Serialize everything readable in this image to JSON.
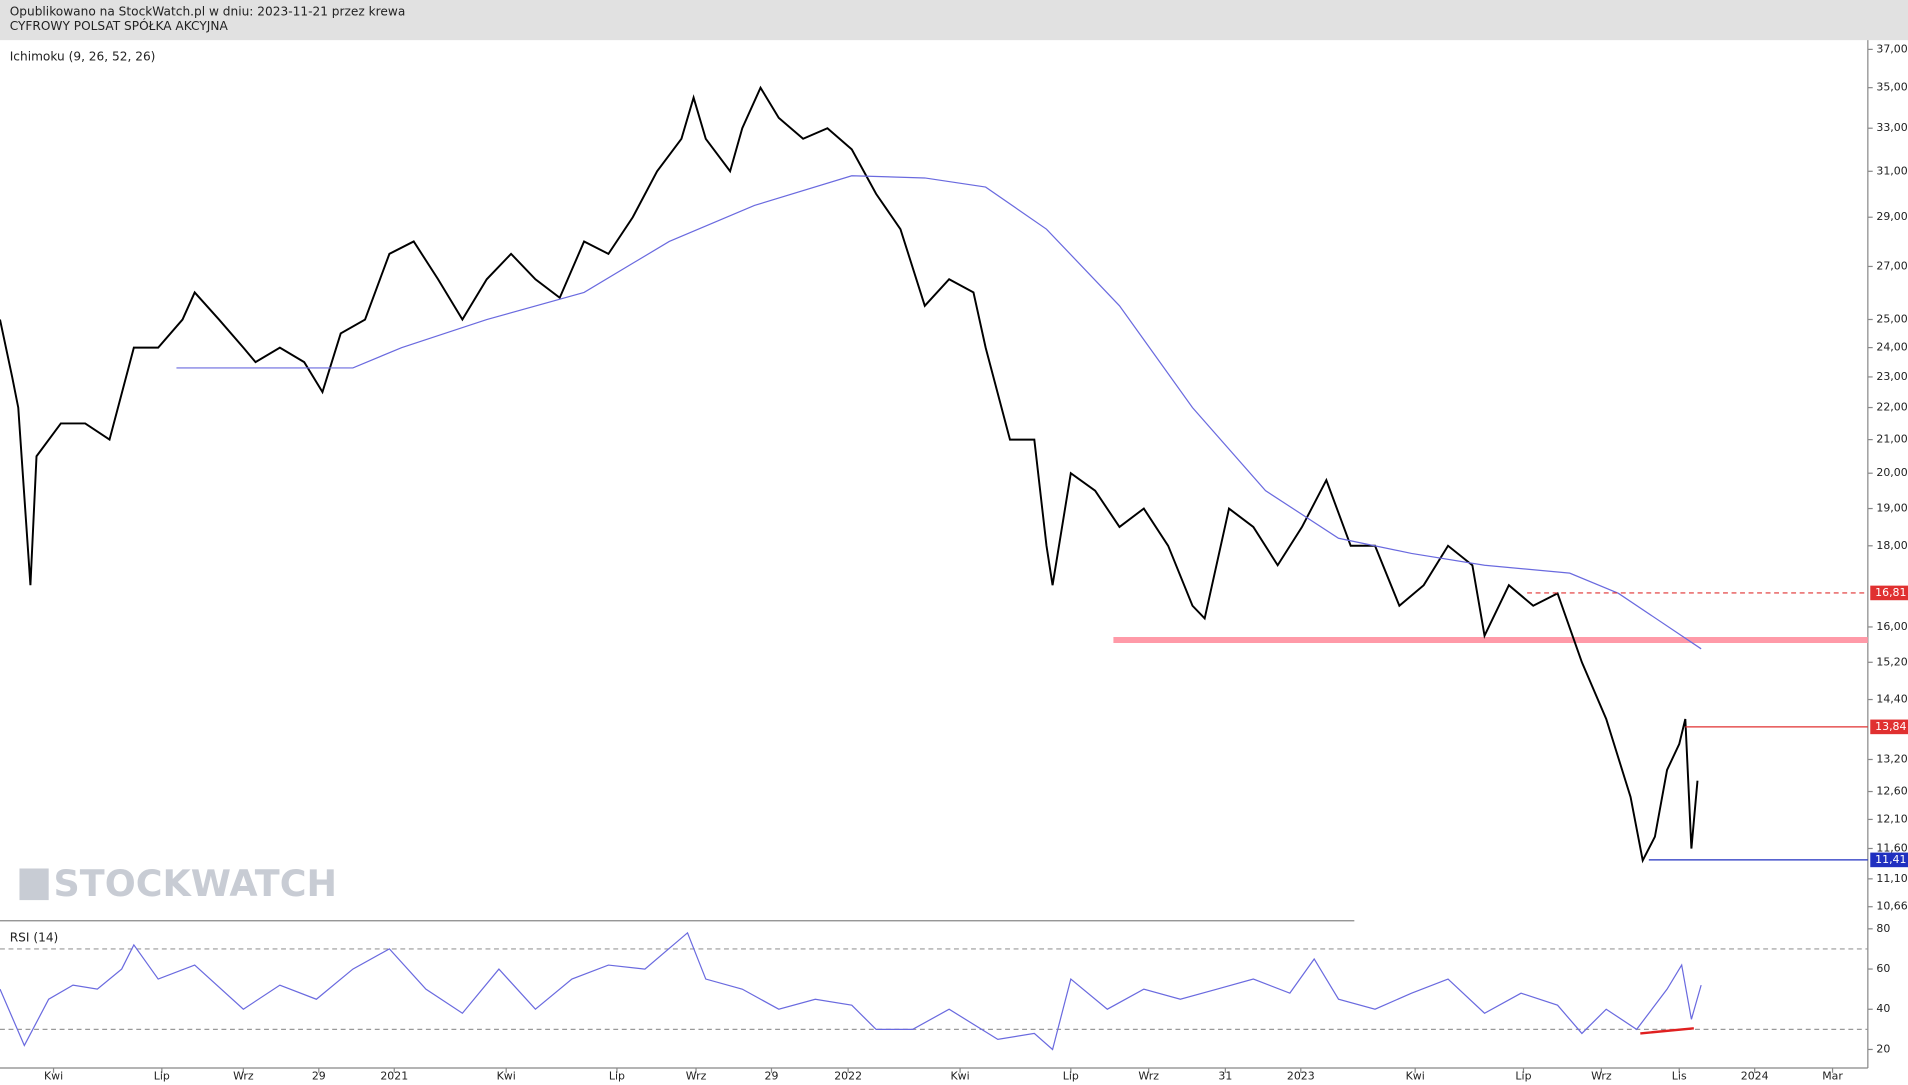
{
  "header": {
    "published": "Opublikowano na StockWatch.pl w dniu: 2023-11-21 przez krewa",
    "instrument": "CYFROWY POLSAT SPÓŁKA AKCYJNA"
  },
  "watermark": "STOCKWATCH",
  "chart_data": [
    {
      "type": "line",
      "title": "Ichimoku (9, 26, 52, 26)",
      "log_scale": true,
      "xlim": [
        0,
        1535
      ],
      "ylim": [
        10.5,
        37.5
      ],
      "xticks": [
        {
          "value": 44,
          "label": "Kwi"
        },
        {
          "value": 133,
          "label": "Lip"
        },
        {
          "value": 200,
          "label": "Wrz"
        },
        {
          "value": 262,
          "label": "29"
        },
        {
          "value": 324,
          "label": "2021"
        },
        {
          "value": 416,
          "label": "Kwi"
        },
        {
          "value": 507,
          "label": "Lip"
        },
        {
          "value": 572,
          "label": "Wrz"
        },
        {
          "value": 634,
          "label": "29"
        },
        {
          "value": 697,
          "label": "2022"
        },
        {
          "value": 789,
          "label": "Kwi"
        },
        {
          "value": 880,
          "label": "Lip"
        },
        {
          "value": 944,
          "label": "Wrz"
        },
        {
          "value": 1007,
          "label": "31"
        },
        {
          "value": 1069,
          "label": "2023"
        },
        {
          "value": 1163,
          "label": "Kwi"
        },
        {
          "value": 1252,
          "label": "Lip"
        },
        {
          "value": 1316,
          "label": "Wrz"
        },
        {
          "value": 1380,
          "label": "Lis"
        },
        {
          "value": 1442,
          "label": "2024"
        },
        {
          "value": 1506,
          "label": "Mar"
        }
      ],
      "yticks": [
        {
          "value": 37,
          "label": "37,00"
        },
        {
          "value": 35,
          "label": "35,00"
        },
        {
          "value": 33,
          "label": "33,00"
        },
        {
          "value": 31,
          "label": "31,00"
        },
        {
          "value": 29,
          "label": "29,00"
        },
        {
          "value": 27,
          "label": "27,00"
        },
        {
          "value": 25,
          "label": "25,00"
        },
        {
          "value": 24,
          "label": "24,00"
        },
        {
          "value": 23,
          "label": "23,00"
        },
        {
          "value": 22,
          "label": "22,00"
        },
        {
          "value": 21,
          "label": "21,00"
        },
        {
          "value": 20,
          "label": "20,00"
        },
        {
          "value": 19,
          "label": "19,00"
        },
        {
          "value": 18,
          "label": "18,00"
        },
        {
          "value": 16,
          "label": "16,00"
        },
        {
          "value": 15.2,
          "label": "15,20"
        },
        {
          "value": 14.4,
          "label": "14,40"
        },
        {
          "value": 13.2,
          "label": "13,20"
        },
        {
          "value": 12.6,
          "label": "12,60"
        },
        {
          "value": 12.1,
          "label": "12,10"
        },
        {
          "value": 11.6,
          "label": "11,60"
        },
        {
          "value": 11.1,
          "label": "11,10"
        },
        {
          "value": 10.66,
          "label": "10,66"
        }
      ],
      "series": [
        {
          "color": "#000000",
          "x": [
            0,
            10,
            15,
            25,
            30,
            50,
            70,
            90,
            110,
            130,
            150,
            160,
            180,
            200,
            210,
            230,
            250,
            265,
            280,
            300,
            320,
            340,
            360,
            380,
            400,
            420,
            440,
            460,
            480,
            500,
            520,
            540,
            560,
            570,
            580,
            600,
            610,
            625,
            640,
            660,
            680,
            700,
            720,
            740,
            760,
            780,
            800,
            810,
            830,
            850,
            860,
            865,
            880,
            900,
            920,
            940,
            960,
            980,
            990,
            1010,
            1030,
            1050,
            1070,
            1090,
            1110,
            1130,
            1150,
            1170,
            1190,
            1210,
            1220,
            1240,
            1260,
            1280,
            1300,
            1320,
            1340,
            1350,
            1360,
            1370,
            1380,
            1385,
            1390,
            1395
          ],
          "values": [
            25,
            23,
            22,
            17,
            20.5,
            21.5,
            21.5,
            21,
            24,
            24,
            25,
            26,
            25,
            24,
            23.5,
            24,
            23.5,
            22.5,
            24.5,
            25,
            27.5,
            28,
            26.5,
            25,
            26.5,
            27.5,
            26.5,
            25.8,
            28,
            27.5,
            29,
            31,
            32.5,
            34.5,
            32.5,
            31,
            33,
            35,
            33.5,
            32.5,
            33,
            32,
            30,
            28.5,
            25.5,
            26.5,
            26,
            24,
            21,
            21,
            18,
            17,
            20,
            19.5,
            18.5,
            19,
            18,
            16.5,
            16.2,
            19,
            18.5,
            17.5,
            18.5,
            19.8,
            18,
            18,
            16.5,
            17,
            18,
            17.5,
            15.8,
            17,
            16.5,
            16.8,
            15.2,
            14,
            12.5,
            11.4,
            11.8,
            13,
            13.5,
            14,
            11.6,
            12.8
          ]
        },
        {
          "color": "#6a6adf",
          "x": [
            145,
            290,
            330,
            400,
            480,
            550,
            620,
            700,
            760,
            810,
            860,
            920,
            980,
            1040,
            1100,
            1160,
            1220,
            1290,
            1330,
            1398
          ],
          "values": [
            23.3,
            23.3,
            24,
            25,
            26,
            28,
            29.5,
            30.8,
            30.7,
            30.3,
            28.5,
            25.5,
            22,
            19.5,
            18.2,
            17.8,
            17.5,
            17.3,
            16.8,
            15.5
          ]
        }
      ],
      "levels": [
        {
          "value": 16.81,
          "label": "16,81",
          "color": "#e03030",
          "style": "dashed",
          "x": [
            1255,
            1535
          ]
        },
        {
          "value": 13.84,
          "label": "13,84",
          "color": "#e03030",
          "style": "solid",
          "x": [
            1385,
            1535
          ]
        },
        {
          "value": 11.41,
          "label": "11,41",
          "color": "#2030c0",
          "style": "solid",
          "x": [
            1355,
            1535
          ]
        }
      ],
      "band": {
        "value": 15.7,
        "color": "#ff9aa8",
        "x": [
          915,
          1535
        ]
      }
    },
    {
      "type": "line",
      "title": "RSI (14)",
      "xlim": [
        0,
        1535
      ],
      "ylim": [
        12,
        84
      ],
      "yticks": [
        80,
        60,
        40,
        20
      ],
      "hlines": [
        70,
        30
      ],
      "series": [
        {
          "color": "#6a6adf",
          "x": [
            0,
            20,
            40,
            60,
            80,
            100,
            110,
            130,
            160,
            200,
            230,
            260,
            290,
            320,
            350,
            380,
            410,
            440,
            470,
            500,
            530,
            565,
            580,
            610,
            640,
            670,
            700,
            720,
            750,
            780,
            820,
            850,
            865,
            880,
            910,
            940,
            970,
            1000,
            1030,
            1060,
            1080,
            1100,
            1130,
            1160,
            1190,
            1220,
            1250,
            1280,
            1300,
            1320,
            1345,
            1370,
            1382,
            1390,
            1398
          ],
          "values": [
            50,
            22,
            45,
            52,
            50,
            60,
            72,
            55,
            62,
            40,
            52,
            45,
            60,
            70,
            50,
            38,
            60,
            40,
            55,
            62,
            60,
            78,
            55,
            50,
            40,
            45,
            42,
            30,
            30,
            40,
            25,
            28,
            20,
            55,
            40,
            50,
            45,
            50,
            55,
            48,
            65,
            45,
            40,
            48,
            55,
            38,
            48,
            42,
            28,
            40,
            30,
            50,
            62,
            35,
            52
          ]
        }
      ],
      "annotation": {
        "color": "#e02020",
        "x": [
          1348,
          1392
        ],
        "values": [
          28,
          30.5
        ]
      }
    }
  ]
}
